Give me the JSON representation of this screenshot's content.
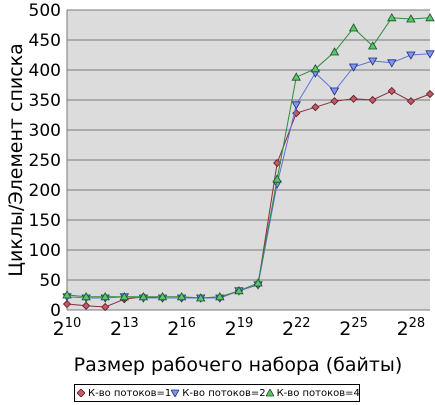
{
  "chart_data": {
    "type": "line",
    "title": "",
    "xlabel": "Размер рабочего набора (байты)",
    "ylabel": "Циклы/Элемент списка",
    "ylim": [
      0,
      500
    ],
    "y_ticks": [
      "0",
      "50",
      "100",
      "150",
      "200",
      "250",
      "300",
      "350",
      "400",
      "450",
      "500"
    ],
    "x_exponents": [
      10,
      11,
      12,
      13,
      14,
      15,
      16,
      17,
      18,
      19,
      20,
      21,
      22,
      23,
      24,
      25,
      26,
      27,
      28,
      29
    ],
    "x_tick_labels": [
      {
        "base": "2",
        "exp": "10",
        "at": 10
      },
      {
        "base": "2",
        "exp": "13",
        "at": 13
      },
      {
        "base": "2",
        "exp": "16",
        "at": 16
      },
      {
        "base": "2",
        "exp": "19",
        "at": 19
      },
      {
        "base": "2",
        "exp": "22",
        "at": 22
      },
      {
        "base": "2",
        "exp": "25",
        "at": 25
      },
      {
        "base": "2",
        "exp": "28",
        "at": 28
      }
    ],
    "grid": "horizontal",
    "legend_position": "bottom",
    "series": [
      {
        "name": "К-во потоков=1",
        "color": "#8b2e3c",
        "marker": "diamond",
        "values": [
          10,
          7,
          5,
          18,
          22,
          20,
          20,
          20,
          20,
          32,
          42,
          245,
          328,
          338,
          348,
          352,
          350,
          365,
          348,
          360
        ]
      },
      {
        "name": "К-во потоков=2",
        "color": "#5b73d6",
        "marker": "triangle-down",
        "values": [
          22,
          20,
          20,
          22,
          20,
          20,
          20,
          20,
          20,
          32,
          42,
          210,
          342,
          395,
          365,
          405,
          415,
          412,
          425,
          427
        ]
      },
      {
        "name": "К-во потоков=4",
        "color": "#2e8b3c",
        "marker": "triangle-up",
        "values": [
          25,
          22,
          22,
          22,
          22,
          22,
          22,
          20,
          22,
          32,
          45,
          218,
          388,
          402,
          430,
          470,
          440,
          487,
          485,
          487
        ]
      }
    ]
  }
}
